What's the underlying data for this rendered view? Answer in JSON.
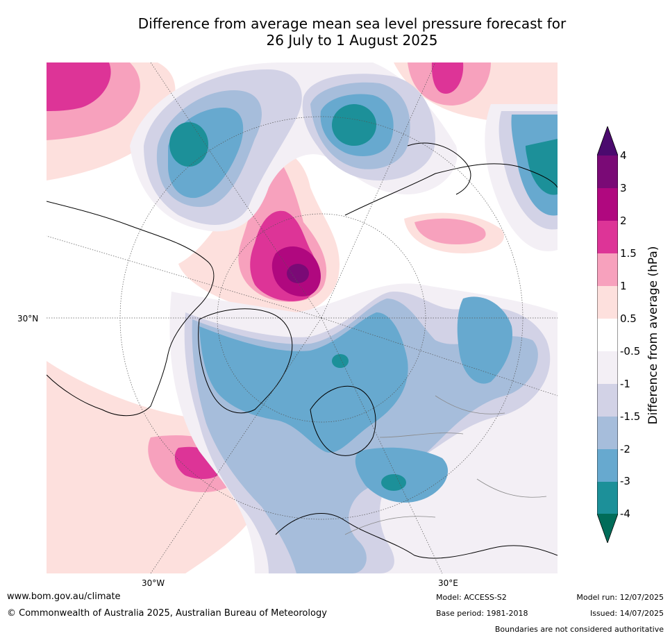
{
  "title_line1": "Difference from average mean sea level pressure forecast for",
  "title_line2": "26 July to 1 August 2025",
  "map": {
    "projection": "north-polar-stereographic",
    "lat_labels": [
      "30°N"
    ],
    "lon_labels": [
      "30°W",
      "30°E"
    ],
    "graticule": "dotted"
  },
  "colorbar": {
    "label": "Difference from average (hPa)",
    "ticks": [
      "4",
      "3",
      "2",
      "1.5",
      "1",
      "0.5",
      "-0.5",
      "-1",
      "-1.5",
      "-2",
      "-3",
      "-4"
    ],
    "colors": {
      "gt4": "#4b0a6e",
      "3_4": "#7a0a76",
      "2_3": "#b0087f",
      "1.5_2": "#dd3497",
      "1_1.5": "#f7a1bd",
      "0.5_1": "#fde0dd",
      "neutral": "#ffffff",
      "m1_m0.5": "#f3eff5",
      "m1.5_m1": "#d2d2e6",
      "m2_m1.5": "#a6bddb",
      "m3_m2": "#67a9cf",
      "m4_m3": "#1c9099",
      "lt_m4": "#016c59"
    }
  },
  "footer": {
    "website": "www.bom.gov.au/climate",
    "copyright": "© Commonwealth of Australia 2025, Australian Bureau of Meteorology",
    "model": "Model: ACCESS-S2",
    "base_period": "Base period: 1981-2018",
    "model_run": "Model run: 12/07/2025",
    "issued": "Issued: 14/07/2025",
    "disclaimer": "Boundaries are not considered authoritative"
  }
}
